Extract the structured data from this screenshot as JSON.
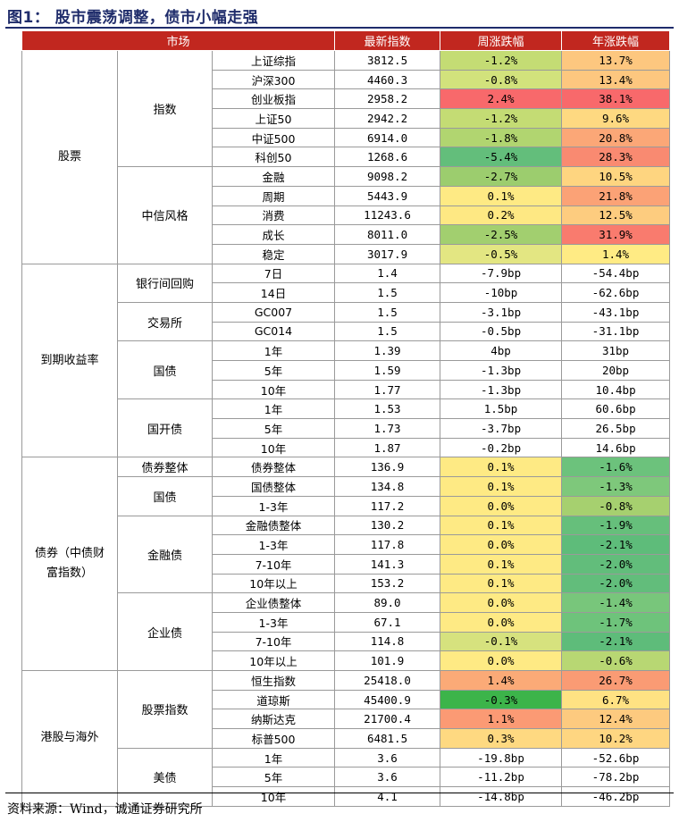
{
  "title": "图1：  股市震荡调整，债市小幅走强",
  "headers": {
    "market": "市场",
    "latest": "最新指数",
    "week": "周涨跌幅",
    "year": "年涨跌幅"
  },
  "sections": [
    {
      "name": "股票",
      "groups": [
        {
          "name": "指数",
          "rows": [
            {
              "label": "上证综指",
              "latest": "3812.5",
              "week": "-1.2%",
              "year": "13.7%",
              "week_color": "#c4dc74",
              "year_color": "#fdc77f"
            },
            {
              "label": "沪深300",
              "latest": "4460.3",
              "week": "-0.8%",
              "year": "13.4%",
              "week_color": "#d2e27c",
              "year_color": "#fdc77f"
            },
            {
              "label": "创业板指",
              "latest": "2958.2",
              "week": "2.4%",
              "year": "38.1%",
              "week_color": "#f8696b",
              "year_color": "#f8696b"
            },
            {
              "label": "上证50",
              "latest": "2942.2",
              "week": "-1.2%",
              "year": "9.6%",
              "week_color": "#c4dc74",
              "year_color": "#fed981"
            },
            {
              "label": "中证500",
              "latest": "6914.0",
              "week": "-1.8%",
              "year": "20.8%",
              "week_color": "#b1d570",
              "year_color": "#fba777"
            },
            {
              "label": "科创50",
              "latest": "1268.6",
              "week": "-5.4%",
              "year": "28.3%",
              "week_color": "#63be7b",
              "year_color": "#f98a71"
            }
          ]
        },
        {
          "name": "中信风格",
          "rows": [
            {
              "label": "金融",
              "latest": "9098.2",
              "week": "-2.7%",
              "year": "10.5%",
              "week_color": "#9ccd6e",
              "year_color": "#fed580"
            },
            {
              "label": "周期",
              "latest": "5443.9",
              "week": "0.1%",
              "year": "21.8%",
              "week_color": "#feea84",
              "year_color": "#fba276"
            },
            {
              "label": "消费",
              "latest": "11243.6",
              "week": "0.2%",
              "year": "12.5%",
              "week_color": "#fee883",
              "year_color": "#fdcc7f"
            },
            {
              "label": "成长",
              "latest": "8011.0",
              "week": "-2.5%",
              "year": "31.9%",
              "week_color": "#a2cf6f",
              "year_color": "#f97b6e"
            },
            {
              "label": "稳定",
              "latest": "3017.9",
              "week": "-0.5%",
              "year": "1.4%",
              "week_color": "#e3e682",
              "year_color": "#ffeb84"
            }
          ]
        }
      ]
    },
    {
      "name": "到期收益率",
      "groups": [
        {
          "name": "银行间回购",
          "rows": [
            {
              "label": "7日",
              "latest": "1.4",
              "week": "-7.9bp",
              "year": "-54.4bp"
            },
            {
              "label": "14日",
              "latest": "1.5",
              "week": "-10bp",
              "year": "-62.6bp"
            }
          ]
        },
        {
          "name": "交易所",
          "rows": [
            {
              "label": "GC007",
              "latest": "1.5",
              "week": "-3.1bp",
              "year": "-43.1bp"
            },
            {
              "label": "GC014",
              "latest": "1.5",
              "week": "-0.5bp",
              "year": "-31.1bp"
            }
          ]
        },
        {
          "name": "国债",
          "rows": [
            {
              "label": "1年",
              "latest": "1.39",
              "week": "4bp",
              "year": "31bp"
            },
            {
              "label": "5年",
              "latest": "1.59",
              "week": "-1.3bp",
              "year": "20bp"
            },
            {
              "label": "10年",
              "latest": "1.77",
              "week": "-1.3bp",
              "year": "10.4bp"
            }
          ]
        },
        {
          "name": "国开债",
          "rows": [
            {
              "label": "1年",
              "latest": "1.53",
              "week": "1.5bp",
              "year": "60.6bp"
            },
            {
              "label": "5年",
              "latest": "1.73",
              "week": "-3.7bp",
              "year": "26.5bp"
            },
            {
              "label": "10年",
              "latest": "1.87",
              "week": "-0.2bp",
              "year": "14.6bp"
            }
          ]
        }
      ]
    },
    {
      "name": "债券（中债财\n富指数）",
      "groups": [
        {
          "name": "债券整体",
          "rows": [
            {
              "label": "债券整体",
              "latest": "136.9",
              "week": "0.1%",
              "year": "-1.6%",
              "week_color": "#feea84",
              "year_color": "#6cc27c"
            }
          ]
        },
        {
          "name": "国债",
          "rows": [
            {
              "label": "国债整体",
              "latest": "134.8",
              "week": "0.1%",
              "year": "-1.3%",
              "week_color": "#feea84",
              "year_color": "#7ec87b"
            },
            {
              "label": "1-3年",
              "latest": "117.2",
              "week": "0.0%",
              "year": "-0.8%",
              "week_color": "#feea84",
              "year_color": "#a6d06f"
            }
          ]
        },
        {
          "name": "金融债",
          "rows": [
            {
              "label": "金融债整体",
              "latest": "130.2",
              "week": "0.1%",
              "year": "-1.9%",
              "week_color": "#feea84",
              "year_color": "#66bf7b"
            },
            {
              "label": "1-3年",
              "latest": "117.8",
              "week": "0.0%",
              "year": "-2.1%",
              "week_color": "#feea84",
              "year_color": "#5ebc7a"
            },
            {
              "label": "7-10年",
              "latest": "141.3",
              "week": "0.1%",
              "year": "-2.0%",
              "week_color": "#feea84",
              "year_color": "#62bd7b"
            },
            {
              "label": "10年以上",
              "latest": "153.2",
              "week": "0.1%",
              "year": "-2.0%",
              "week_color": "#feea84",
              "year_color": "#62bd7b"
            }
          ]
        },
        {
          "name": "企业债",
          "rows": [
            {
              "label": "企业债整体",
              "latest": "89.0",
              "week": "0.0%",
              "year": "-1.4%",
              "week_color": "#feea84",
              "year_color": "#78c67b"
            },
            {
              "label": "1-3年",
              "latest": "67.1",
              "week": "0.0%",
              "year": "-1.7%",
              "week_color": "#feea84",
              "year_color": "#6ec37b"
            },
            {
              "label": "7-10年",
              "latest": "114.8",
              "week": "-0.1%",
              "year": "-2.1%",
              "week_color": "#d6e27e",
              "year_color": "#5ebc7a"
            },
            {
              "label": "10年以上",
              "latest": "101.9",
              "week": "0.0%",
              "year": "-0.6%",
              "week_color": "#feea84",
              "year_color": "#b8d773"
            }
          ]
        }
      ]
    },
    {
      "name": "港股与海外",
      "groups": [
        {
          "name": "股票指数",
          "rows": [
            {
              "label": "恒生指数",
              "latest": "25418.0",
              "week": "1.4%",
              "year": "26.7%",
              "week_color": "#fbaa77",
              "year_color": "#fa9b74"
            },
            {
              "label": "道琼斯",
              "latest": "45400.9",
              "week": "-0.3%",
              "year": "6.7%",
              "week_color": "#3cb44a",
              "year_color": "#ffe283"
            },
            {
              "label": "纳斯达克",
              "latest": "21700.4",
              "week": "1.1%",
              "year": "12.4%",
              "week_color": "#fb9a74",
              "year_color": "#fdca7f"
            },
            {
              "label": "标普500",
              "latest": "6481.5",
              "week": "0.3%",
              "year": "10.2%",
              "week_color": "#fed981",
              "year_color": "#fed681"
            }
          ]
        },
        {
          "name": "美债",
          "rows": [
            {
              "label": "1年",
              "latest": "3.6",
              "week": "-19.8bp",
              "year": "-52.6bp"
            },
            {
              "label": "5年",
              "latest": "3.6",
              "week": "-11.2bp",
              "year": "-78.2bp"
            },
            {
              "label": "10年",
              "latest": "4.1",
              "week": "-14.8bp",
              "year": "-46.2bp"
            }
          ]
        }
      ]
    }
  ],
  "source": "资料来源：Wind，诚通证券研究所"
}
